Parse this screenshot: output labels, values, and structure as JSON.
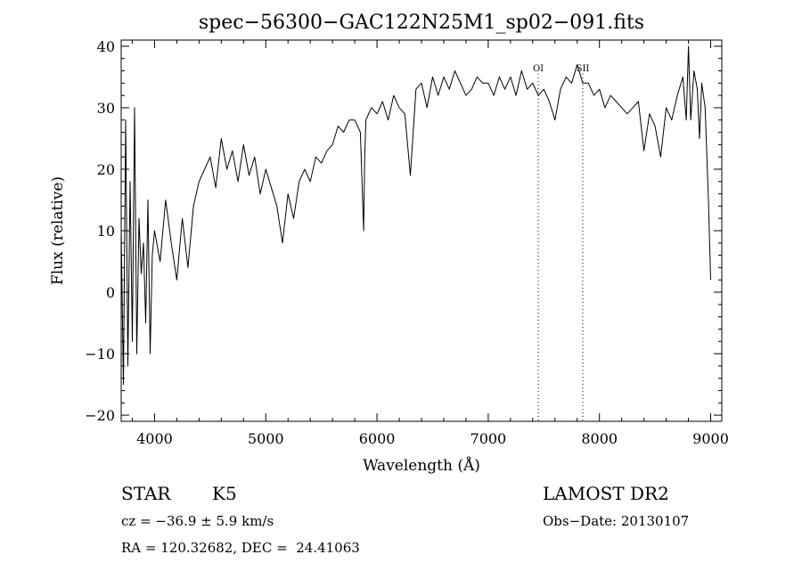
{
  "chart_data": {
    "type": "line",
    "title": "spec−56300−GAC122N25M1_sp02−091.fits",
    "xlabel": "Wavelength (Å)",
    "ylabel": "Flux (relative)",
    "xlim": [
      3700,
      9100
    ],
    "ylim": [
      -21,
      41
    ],
    "xticks": [
      4000,
      5000,
      6000,
      7000,
      8000,
      9000
    ],
    "yticks": [
      -20,
      -10,
      0,
      10,
      20,
      30,
      40
    ],
    "ytick_labels": [
      "−20",
      "−10",
      "0",
      "10",
      "20",
      "30",
      "40"
    ],
    "grid": false,
    "line_color": "#000000",
    "series": [
      {
        "x": [
          3700,
          3720,
          3740,
          3760,
          3780,
          3800,
          3820,
          3840,
          3860,
          3880,
          3900,
          3920,
          3940,
          3960,
          3980,
          4000,
          4050,
          4100,
          4150,
          4200,
          4250,
          4300,
          4350,
          4400,
          4450,
          4500,
          4550,
          4600,
          4650,
          4700,
          4750,
          4800,
          4850,
          4900,
          4950,
          5000,
          5050,
          5100,
          5150,
          5200,
          5250,
          5300,
          5350,
          5400,
          5450,
          5500,
          5550,
          5600,
          5650,
          5700,
          5750,
          5800,
          5850,
          5880,
          5890,
          5900,
          5950,
          6000,
          6050,
          6100,
          6150,
          6200,
          6250,
          6300,
          6350,
          6400,
          6450,
          6500,
          6550,
          6600,
          6650,
          6700,
          6750,
          6800,
          6850,
          6900,
          6950,
          7000,
          7050,
          7100,
          7150,
          7200,
          7250,
          7300,
          7350,
          7400,
          7450,
          7500,
          7550,
          7600,
          7650,
          7700,
          7750,
          7800,
          7850,
          7900,
          7950,
          8000,
          8050,
          8100,
          8150,
          8200,
          8250,
          8300,
          8350,
          8400,
          8450,
          8500,
          8550,
          8600,
          8650,
          8700,
          8750,
          8780,
          8800,
          8820,
          8850,
          8880,
          8900,
          8920,
          8950,
          8980,
          9000
        ],
        "y": [
          10,
          -15,
          28,
          -12,
          18,
          -8,
          30,
          -10,
          12,
          3,
          8,
          -5,
          15,
          -10,
          6,
          10,
          5,
          15,
          8,
          2,
          12,
          4,
          14,
          18,
          20,
          22,
          17,
          25,
          20,
          23,
          18,
          24,
          19,
          22,
          16,
          20,
          17,
          14,
          8,
          16,
          12,
          18,
          20,
          18,
          22,
          21,
          23,
          24,
          27,
          26,
          28,
          28,
          26,
          10,
          22,
          28,
          30,
          29,
          31,
          28,
          32,
          30,
          29,
          19,
          33,
          34,
          30,
          35,
          32,
          35,
          33,
          36,
          34,
          32,
          33,
          35,
          34,
          34,
          32,
          35,
          33,
          35,
          32,
          36,
          33,
          34,
          32,
          33,
          31,
          28,
          33,
          35,
          34,
          37,
          34,
          34,
          32,
          33,
          30,
          32,
          31,
          30,
          29,
          30,
          31,
          23,
          29,
          27,
          22,
          30,
          28,
          32,
          35,
          28,
          40,
          28,
          36,
          33,
          25,
          34,
          30,
          15,
          2
        ]
      }
    ],
    "vlines": [
      {
        "x": 7450,
        "label": "OI"
      },
      {
        "x": 7850,
        "label": "SII"
      }
    ]
  },
  "info": {
    "class_label": "STAR",
    "subclass": "K5",
    "survey": "LAMOST DR2",
    "cz": "cz = −36.9 ± 5.9 km/s",
    "obs_date": "Obs−Date: 20130107",
    "coords": "RA = 120.32682, DEC =  24.41063"
  }
}
